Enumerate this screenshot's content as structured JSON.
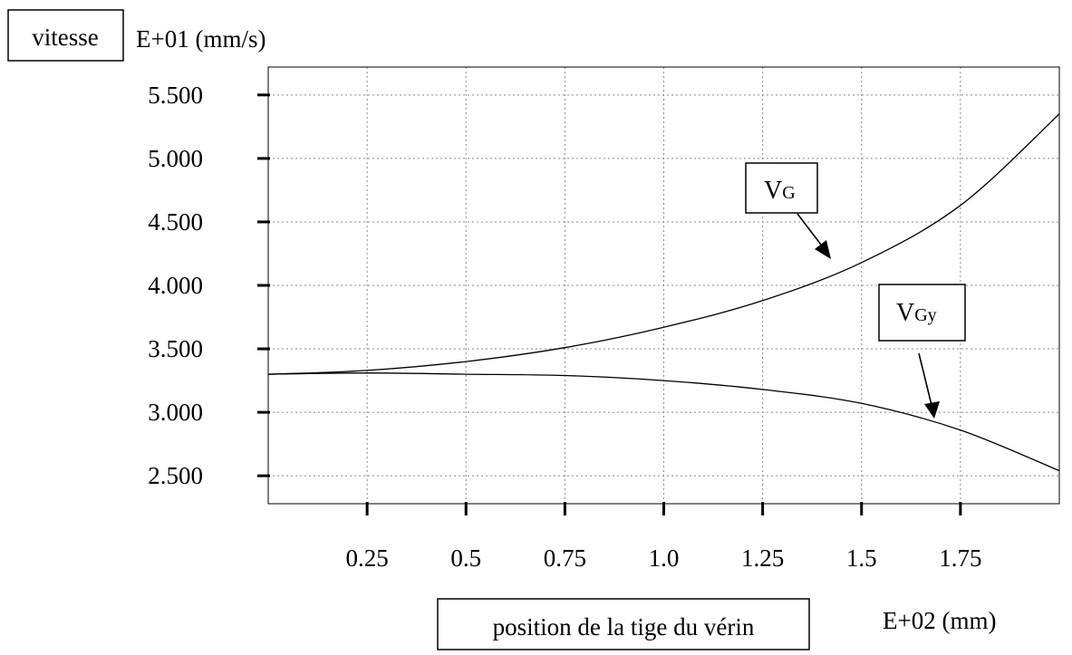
{
  "chart_data": {
    "type": "line",
    "ylabel_box": "vitesse",
    "y_unit": "E+01 (mm/s)",
    "xlabel_box": "position de la tige du vérin",
    "x_unit": "E+02 (mm)",
    "xlim": [
      0,
      2.0
    ],
    "ylim": [
      2.28,
      5.72
    ],
    "x_ticks": [
      0.25,
      0.5,
      0.75,
      1.0,
      1.25,
      1.5,
      1.75
    ],
    "x_tick_labels": [
      "0.25",
      "0.5",
      "0.75",
      "1.0",
      "1.25",
      "1.5",
      "1.75"
    ],
    "y_ticks": [
      2.5,
      3.0,
      3.5,
      4.0,
      4.5,
      5.0,
      5.5
    ],
    "y_tick_labels": [
      "2.500",
      "3.000",
      "3.500",
      "4.000",
      "4.500",
      "5.000",
      "5.500"
    ],
    "grid": true,
    "series": [
      {
        "name": "VG",
        "label_main": "V",
        "label_sub": "G",
        "x": [
          0,
          0.25,
          0.5,
          0.75,
          1.0,
          1.25,
          1.5,
          1.75,
          2.0
        ],
        "values": [
          3.3,
          3.33,
          3.4,
          3.51,
          3.67,
          3.88,
          4.18,
          4.63,
          5.35
        ]
      },
      {
        "name": "VGy",
        "label_main": "V",
        "label_sub": "Gy",
        "x": [
          0,
          0.25,
          0.5,
          0.75,
          1.0,
          1.25,
          1.5,
          1.75,
          2.0
        ],
        "values": [
          3.3,
          3.31,
          3.3,
          3.29,
          3.25,
          3.18,
          3.07,
          2.86,
          2.54
        ]
      }
    ]
  }
}
